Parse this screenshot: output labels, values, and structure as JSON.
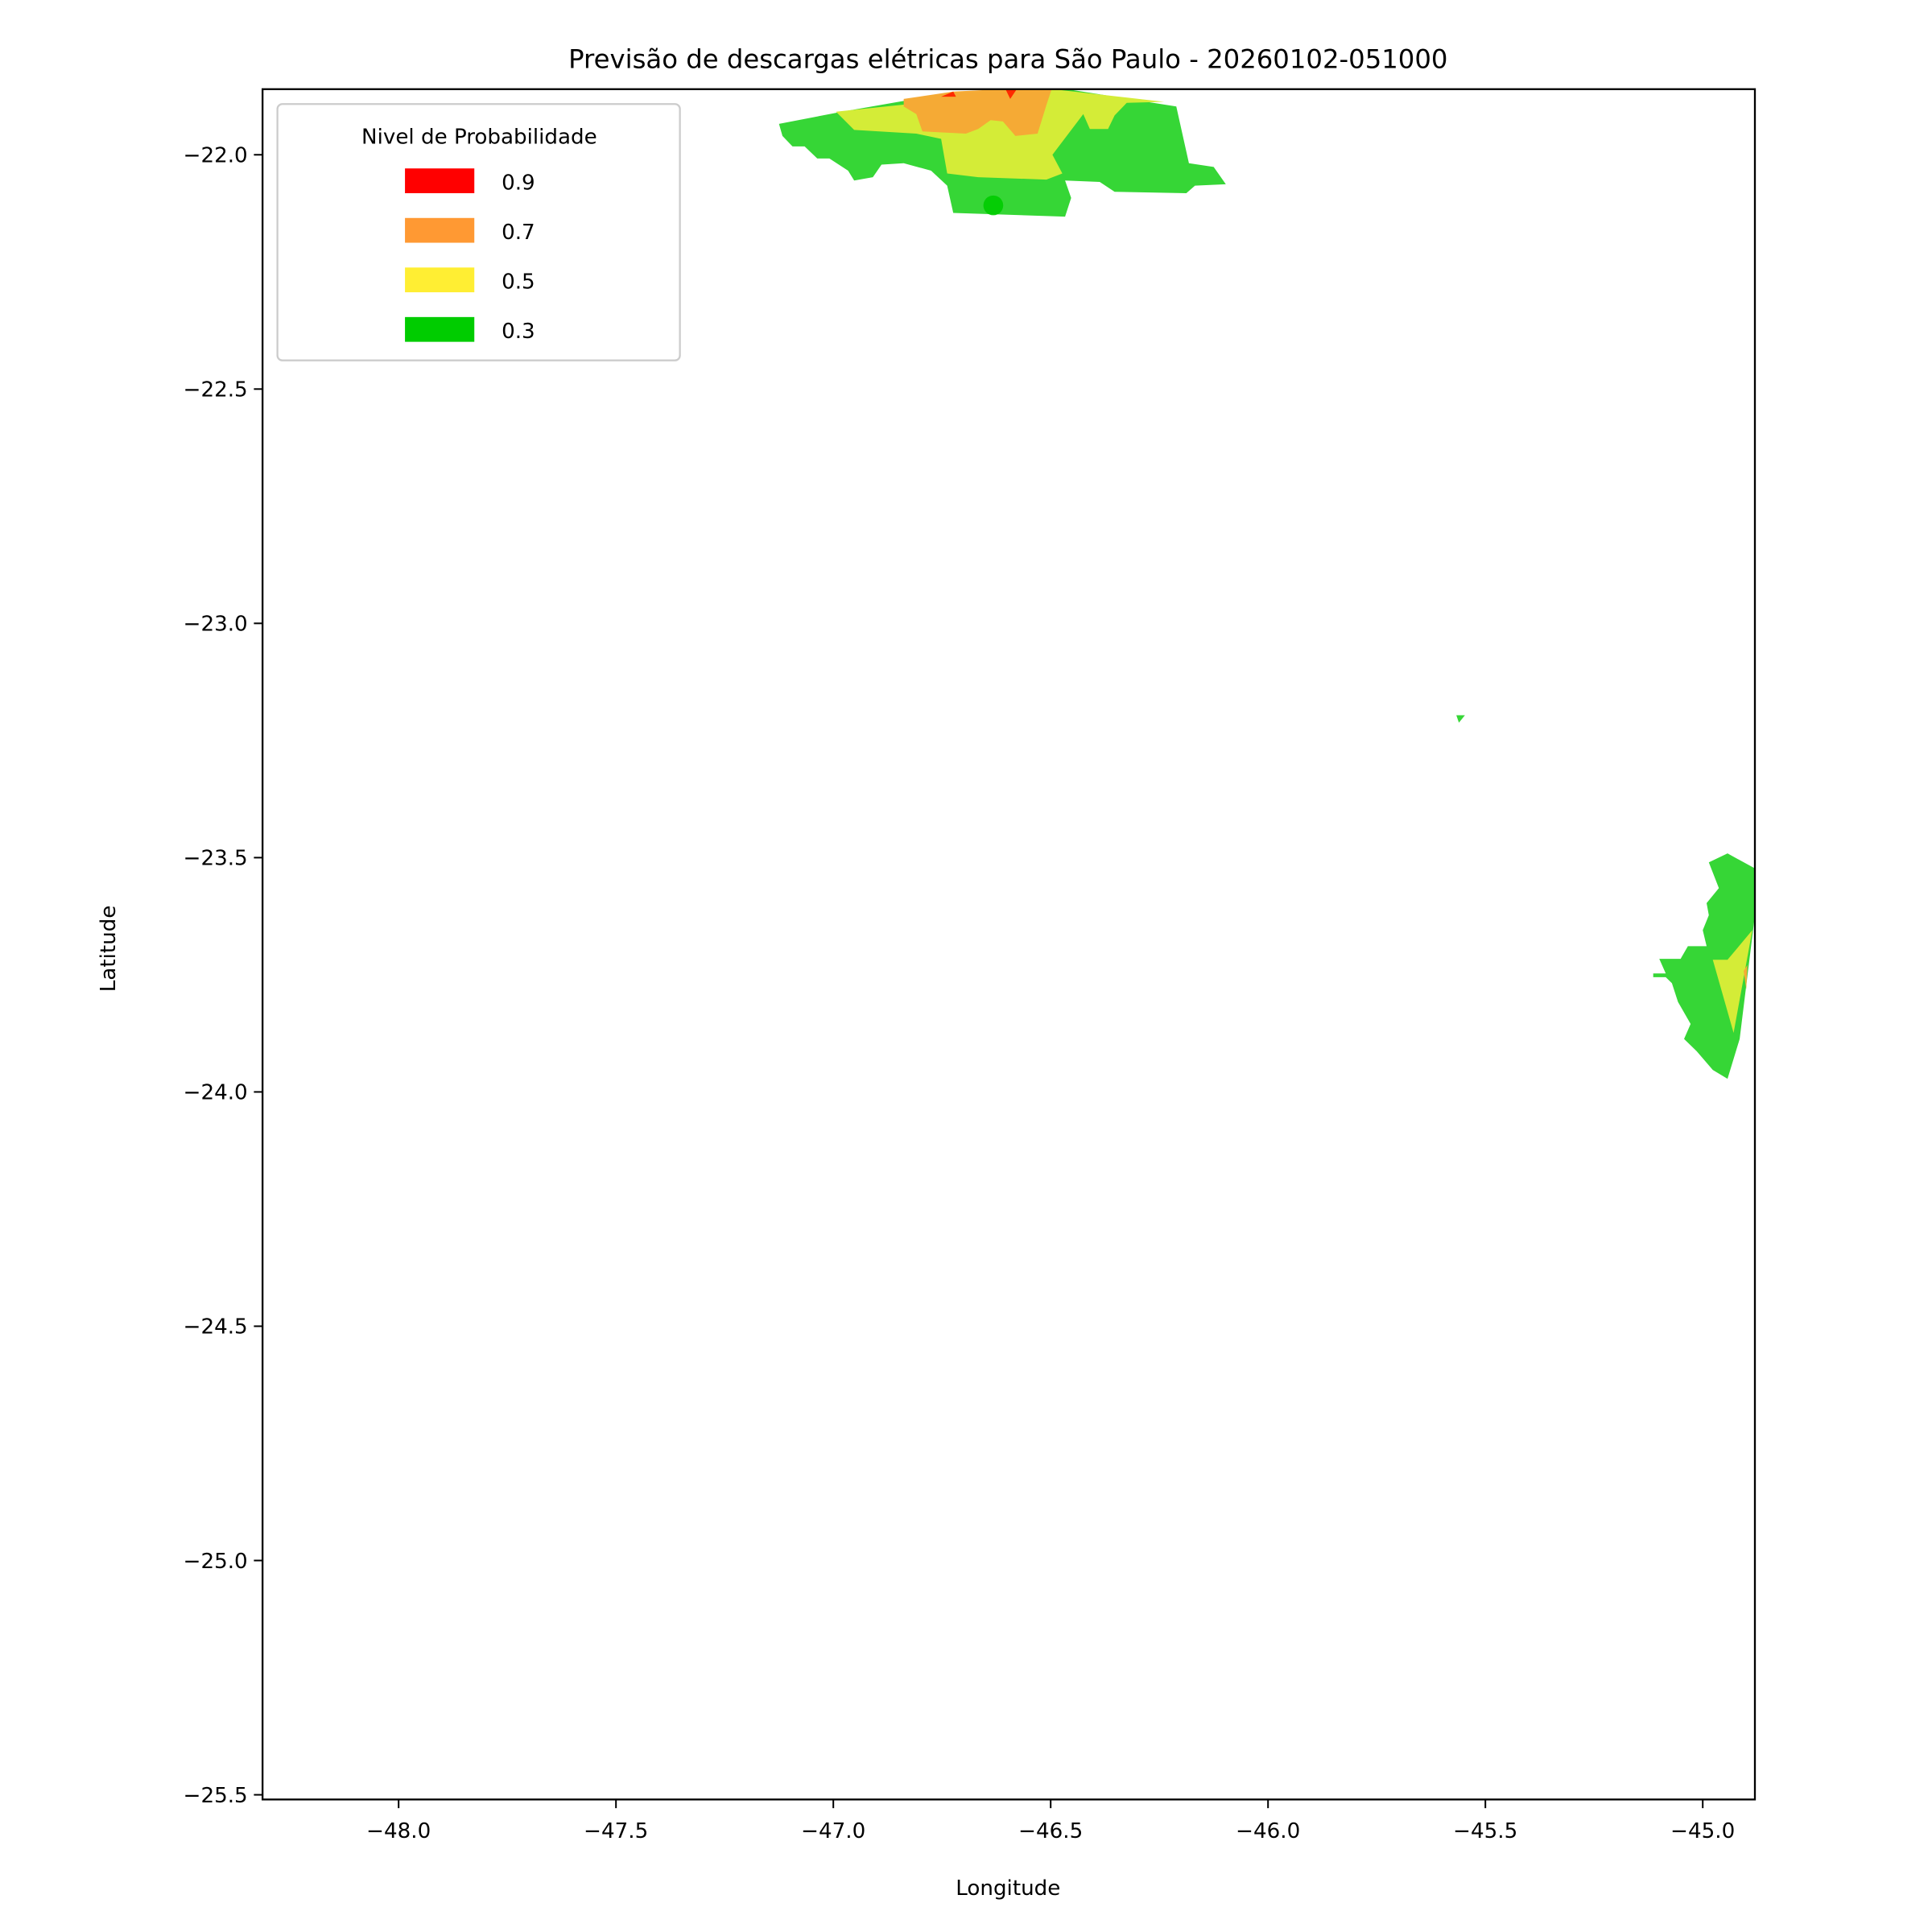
{
  "chart_data": {
    "type": "area",
    "title": "Previsão de descargas elétricas para São Paulo - 20260102-051000",
    "xlabel": "Longitude",
    "ylabel": "Latitude",
    "xlim": [
      -48.313,
      -44.88
    ],
    "ylim": [
      -25.51,
      -21.86
    ],
    "xticks": [
      -48.0,
      -47.5,
      -47.0,
      -46.5,
      -46.0,
      -45.5,
      -45.0
    ],
    "xtick_labels": [
      "−48.0",
      "−47.5",
      "−47.0",
      "−46.5",
      "−46.0",
      "−45.5",
      "−45.0"
    ],
    "yticks": [
      -22.0,
      -22.5,
      -23.0,
      -23.5,
      -24.0,
      -24.5,
      -25.0,
      -25.5
    ],
    "ytick_labels": [
      "−22.0",
      "−22.5",
      "−23.0",
      "−23.5",
      "−24.0",
      "−24.5",
      "−25.0",
      "−25.5"
    ],
    "grid": false,
    "legend": {
      "title": "Nivel de Probabilidade",
      "placement": "top-left",
      "entries": [
        {
          "label": "0.9",
          "color": "#ff0000"
        },
        {
          "label": "0.7",
          "color": "#ff9933"
        },
        {
          "label": "0.5",
          "color": "#ffee33"
        },
        {
          "label": "0.3",
          "color": "#00cc00"
        }
      ]
    },
    "regions": [
      {
        "level": 0.3,
        "color": "#36d636",
        "points": [
          [
            -47.125,
            -21.934
          ],
          [
            -46.98,
            -21.908
          ],
          [
            -46.752,
            -21.871
          ],
          [
            -46.496,
            -21.855
          ],
          [
            -46.211,
            -21.897
          ],
          [
            -46.182,
            -22.018
          ],
          [
            -46.125,
            -22.026
          ],
          [
            -46.097,
            -22.063
          ],
          [
            -46.168,
            -22.066
          ],
          [
            -46.188,
            -22.082
          ],
          [
            -46.353,
            -22.079
          ],
          [
            -46.387,
            -22.058
          ],
          [
            -46.467,
            -22.055
          ],
          [
            -46.453,
            -22.092
          ],
          [
            -46.467,
            -22.132
          ],
          [
            -46.724,
            -22.124
          ],
          [
            -46.738,
            -22.066
          ],
          [
            -46.775,
            -22.034
          ],
          [
            -46.838,
            -22.018
          ],
          [
            -46.889,
            -22.021
          ],
          [
            -46.909,
            -22.048
          ],
          [
            -46.952,
            -22.055
          ],
          [
            -46.966,
            -22.034
          ],
          [
            -47.009,
            -22.008
          ],
          [
            -47.037,
            -22.008
          ],
          [
            -47.066,
            -21.982
          ],
          [
            -47.094,
            -21.982
          ],
          [
            -47.117,
            -21.96
          ]
        ]
      },
      {
        "level": 0.5,
        "color": "#d4ec37",
        "points": [
          [
            -46.994,
            -21.908
          ],
          [
            -46.496,
            -21.86
          ],
          [
            -46.239,
            -21.887
          ],
          [
            -46.325,
            -21.889
          ],
          [
            -46.353,
            -21.916
          ],
          [
            -46.368,
            -21.945
          ],
          [
            -46.41,
            -21.945
          ],
          [
            -46.425,
            -21.913
          ],
          [
            -46.496,
            -22.0
          ],
          [
            -46.473,
            -22.04
          ],
          [
            -46.51,
            -22.053
          ],
          [
            -46.667,
            -22.048
          ],
          [
            -46.738,
            -22.04
          ],
          [
            -46.752,
            -21.966
          ],
          [
            -46.809,
            -21.955
          ],
          [
            -46.952,
            -21.947
          ]
        ]
      },
      {
        "level": 0.7,
        "color": "#f5aa35",
        "points": [
          [
            -46.838,
            -21.881
          ],
          [
            -46.724,
            -21.865
          ],
          [
            -46.496,
            -21.855
          ],
          [
            -46.51,
            -21.894
          ],
          [
            -46.53,
            -21.955
          ],
          [
            -46.581,
            -21.96
          ],
          [
            -46.61,
            -21.929
          ],
          [
            -46.638,
            -21.926
          ],
          [
            -46.667,
            -21.945
          ],
          [
            -46.695,
            -21.955
          ],
          [
            -46.795,
            -21.95
          ],
          [
            -46.809,
            -21.913
          ],
          [
            -46.838,
            -21.897
          ]
        ]
      },
      {
        "level": 0.9,
        "color": "#ff2a00",
        "points": [
          [
            -46.752,
            -21.876
          ],
          [
            -46.724,
            -21.865
          ],
          [
            -46.718,
            -21.876
          ]
        ]
      },
      {
        "level": 0.9,
        "color": "#ff2a00",
        "points": [
          [
            -46.604,
            -21.86
          ],
          [
            -46.578,
            -21.86
          ],
          [
            -46.593,
            -21.881
          ]
        ]
      },
      {
        "level": 0.3,
        "color": "#36d636",
        "points": [
          [
            -45.567,
            -23.196
          ],
          [
            -45.547,
            -23.196
          ],
          [
            -45.561,
            -23.212
          ]
        ]
      },
      {
        "level": 0.3,
        "color": "#36d636",
        "points": [
          [
            -44.986,
            -23.51
          ],
          [
            -44.943,
            -23.491
          ],
          [
            -44.88,
            -23.523
          ],
          [
            -44.88,
            -23.623
          ],
          [
            -44.915,
            -23.887
          ],
          [
            -44.943,
            -23.972
          ],
          [
            -44.977,
            -23.953
          ],
          [
            -45.014,
            -23.913
          ],
          [
            -45.043,
            -23.887
          ],
          [
            -45.028,
            -23.855
          ],
          [
            -45.057,
            -23.808
          ],
          [
            -45.071,
            -23.768
          ],
          [
            -45.085,
            -23.755
          ],
          [
            -45.114,
            -23.755
          ],
          [
            -45.114,
            -23.747
          ],
          [
            -45.085,
            -23.747
          ],
          [
            -45.1,
            -23.716
          ],
          [
            -45.051,
            -23.716
          ],
          [
            -45.034,
            -23.689
          ],
          [
            -44.991,
            -23.689
          ],
          [
            -45.0,
            -23.655
          ],
          [
            -44.986,
            -23.623
          ],
          [
            -44.991,
            -23.597
          ],
          [
            -44.963,
            -23.565
          ]
        ]
      },
      {
        "level": 0.5,
        "color": "#d4ec37",
        "points": [
          [
            -44.977,
            -23.718
          ],
          [
            -44.943,
            -23.718
          ],
          [
            -44.886,
            -23.655
          ],
          [
            -44.929,
            -23.874
          ]
        ]
      },
      {
        "level": 0.7,
        "color": "#f5aa35",
        "points": [
          [
            -44.906,
            -23.742
          ],
          [
            -44.897,
            -23.729
          ],
          [
            -44.9,
            -23.781
          ]
        ]
      }
    ],
    "points": [
      {
        "lon": -46.632,
        "lat": -22.108,
        "color": "#00cc00"
      }
    ]
  }
}
